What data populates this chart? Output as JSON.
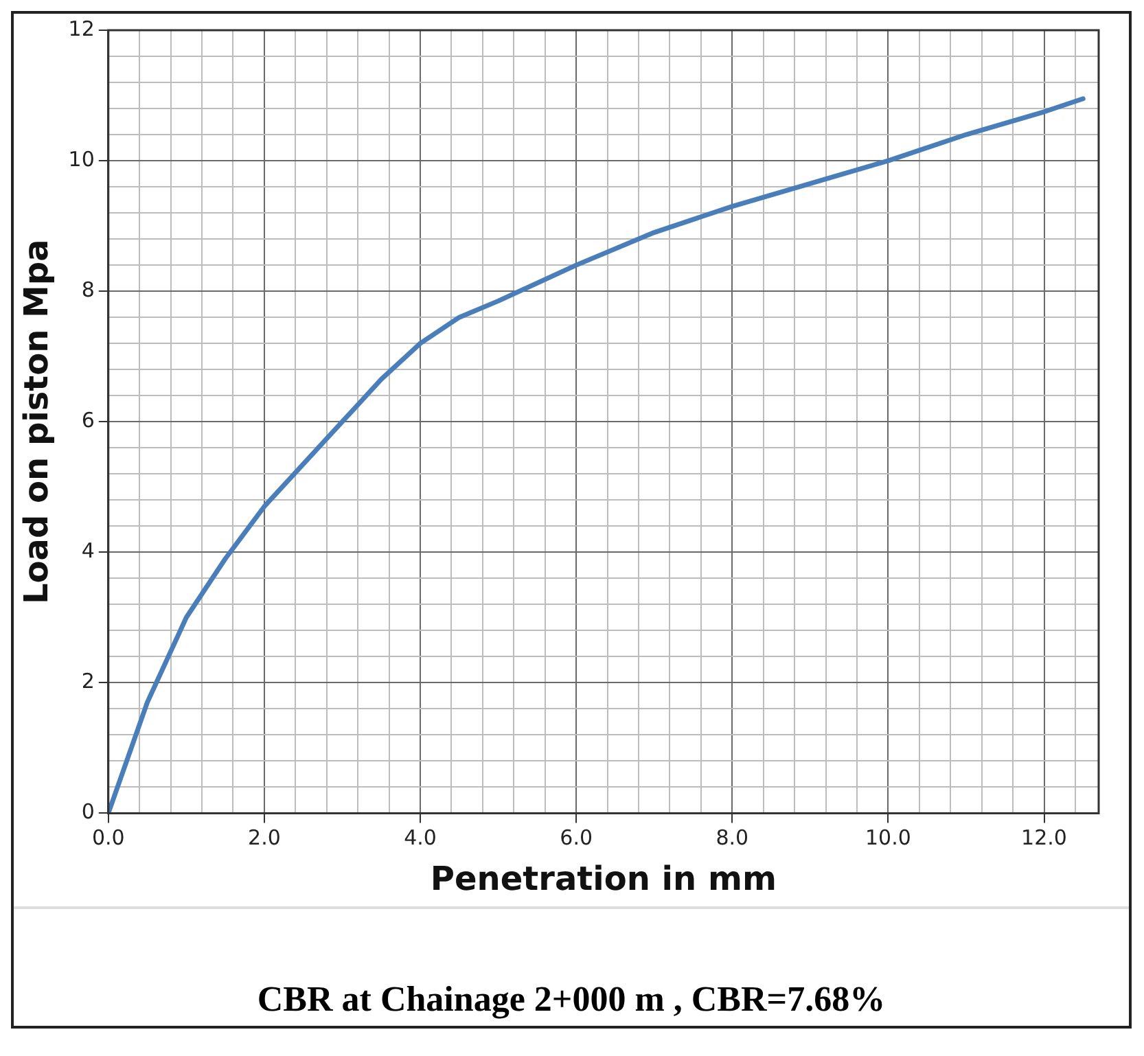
{
  "chart_data": {
    "type": "line",
    "xlabel": "Penetration in mm",
    "ylabel": "Load on piston Mpa",
    "x": [
      0,
      0.5,
      1,
      1.5,
      2,
      2.5,
      3,
      3.5,
      4,
      4.5,
      5,
      6,
      7,
      8,
      9,
      10,
      11,
      12,
      12.5
    ],
    "series": [
      {
        "color": "#4a7ebb",
        "values": [
          0,
          1.7,
          3.0,
          3.9,
          4.7,
          5.35,
          6.0,
          6.65,
          7.2,
          7.6,
          7.85,
          8.4,
          8.9,
          9.3,
          9.65,
          10.0,
          10.4,
          10.75,
          10.95
        ]
      }
    ],
    "xlim": [
      0,
      12.7
    ],
    "xticks": [
      {
        "value": 0,
        "label": "0.0"
      },
      {
        "value": 0.4,
        "label": null
      },
      {
        "value": 0.8,
        "label": null
      },
      {
        "value": 1.2,
        "label": null
      },
      {
        "value": 1.6,
        "label": null
      },
      {
        "value": 2,
        "label": "2.0"
      },
      {
        "value": 2.4,
        "label": null
      },
      {
        "value": 2.8,
        "label": null
      },
      {
        "value": 3.2,
        "label": null
      },
      {
        "value": 3.6,
        "label": null
      },
      {
        "value": 4,
        "label": "4.0"
      },
      {
        "value": 4.4,
        "label": null
      },
      {
        "value": 4.8,
        "label": null
      },
      {
        "value": 5.2,
        "label": null
      },
      {
        "value": 5.6,
        "label": null
      },
      {
        "value": 6,
        "label": "6.0"
      },
      {
        "value": 6.4,
        "label": null
      },
      {
        "value": 6.8,
        "label": null
      },
      {
        "value": 7.2,
        "label": null
      },
      {
        "value": 7.6,
        "label": null
      },
      {
        "value": 8,
        "label": "8.0"
      },
      {
        "value": 8.4,
        "label": null
      },
      {
        "value": 8.8,
        "label": null
      },
      {
        "value": 9.2,
        "label": null
      },
      {
        "value": 9.6,
        "label": null
      },
      {
        "value": 10,
        "label": "10.0"
      },
      {
        "value": 10.4,
        "label": null
      },
      {
        "value": 10.8,
        "label": null
      },
      {
        "value": 11.2,
        "label": null
      },
      {
        "value": 11.6,
        "label": null
      },
      {
        "value": 12,
        "label": "12.0"
      },
      {
        "value": 12.4,
        "label": null
      }
    ],
    "ylim": [
      0,
      12
    ],
    "yticks": [
      0,
      {
        "value": 0.4,
        "label": null
      },
      {
        "value": 0.8,
        "label": null
      },
      {
        "value": 1.2,
        "label": null
      },
      {
        "value": 1.6,
        "label": null
      },
      2,
      {
        "value": 2.4,
        "label": null
      },
      {
        "value": 2.8,
        "label": null
      },
      {
        "value": 3.2,
        "label": null
      },
      {
        "value": 3.6,
        "label": null
      },
      4,
      {
        "value": 4.4,
        "label": null
      },
      {
        "value": 4.8,
        "label": null
      },
      {
        "value": 5.2,
        "label": null
      },
      {
        "value": 5.6,
        "label": null
      },
      6,
      {
        "value": 6.4,
        "label": null
      },
      {
        "value": 6.8,
        "label": null
      },
      {
        "value": 7.2,
        "label": null
      },
      {
        "value": 7.6,
        "label": null
      },
      8,
      {
        "value": 8.4,
        "label": null
      },
      {
        "value": 8.8,
        "label": null
      },
      {
        "value": 9.2,
        "label": null
      },
      {
        "value": 9.6,
        "label": null
      },
      10,
      {
        "value": 10.4,
        "label": null
      },
      {
        "value": 10.8,
        "label": null
      },
      {
        "value": 11.2,
        "label": null
      },
      {
        "value": 11.6,
        "label": null
      },
      12
    ],
    "grid": true,
    "legend": false,
    "marker": "none",
    "line_style": "solid",
    "annotations": [
      "CBR at Chainage 2+000 m , CBR=7.68%"
    ]
  }
}
